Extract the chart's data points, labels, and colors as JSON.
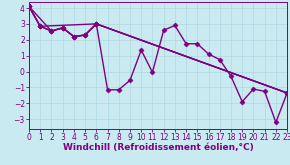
{
  "background_color": "#c8eaf0",
  "line_color": "#800080",
  "marker": "D",
  "markersize": 2.5,
  "linewidth": 1.0,
  "xlabel": "Windchill (Refroidissement éolien,°C)",
  "xlabel_color": "#800080",
  "xlabel_fontsize": 6.5,
  "tick_color": "#800080",
  "tick_fontsize": 5.5,
  "grid_color": "#b0d8e0",
  "grid_linewidth": 0.5,
  "xlim": [
    0,
    23
  ],
  "ylim": [
    -3.6,
    4.4
  ],
  "yticks": [
    -3,
    -2,
    -1,
    0,
    1,
    2,
    3,
    4
  ],
  "xticks": [
    0,
    1,
    2,
    3,
    4,
    5,
    6,
    7,
    8,
    9,
    10,
    11,
    12,
    13,
    14,
    15,
    16,
    17,
    18,
    19,
    20,
    21,
    22,
    23
  ],
  "lines": [
    {
      "x": [
        0,
        1,
        2,
        3,
        4,
        5,
        6,
        7,
        8,
        9,
        10,
        11,
        12,
        13,
        14,
        15,
        16,
        17,
        18,
        19,
        20,
        21,
        22,
        23
      ],
      "y": [
        4.1,
        2.85,
        2.55,
        2.75,
        2.2,
        2.3,
        3.0,
        -1.15,
        -1.15,
        -0.55,
        1.35,
        -0.05,
        2.6,
        2.9,
        1.75,
        1.75,
        1.1,
        0.75,
        -0.3,
        -1.9,
        -1.1,
        -1.25,
        -3.2,
        -1.35
      ]
    },
    {
      "x": [
        0,
        1,
        2,
        3,
        4,
        5,
        6,
        23
      ],
      "y": [
        4.1,
        2.85,
        2.55,
        2.75,
        2.2,
        2.3,
        3.0,
        -1.35
      ]
    },
    {
      "x": [
        0,
        1,
        6,
        23
      ],
      "y": [
        4.1,
        2.85,
        3.0,
        -1.35
      ]
    },
    {
      "x": [
        0,
        2,
        3,
        4,
        5,
        6,
        23
      ],
      "y": [
        4.1,
        2.55,
        2.75,
        2.2,
        2.3,
        3.0,
        -1.35
      ]
    }
  ]
}
